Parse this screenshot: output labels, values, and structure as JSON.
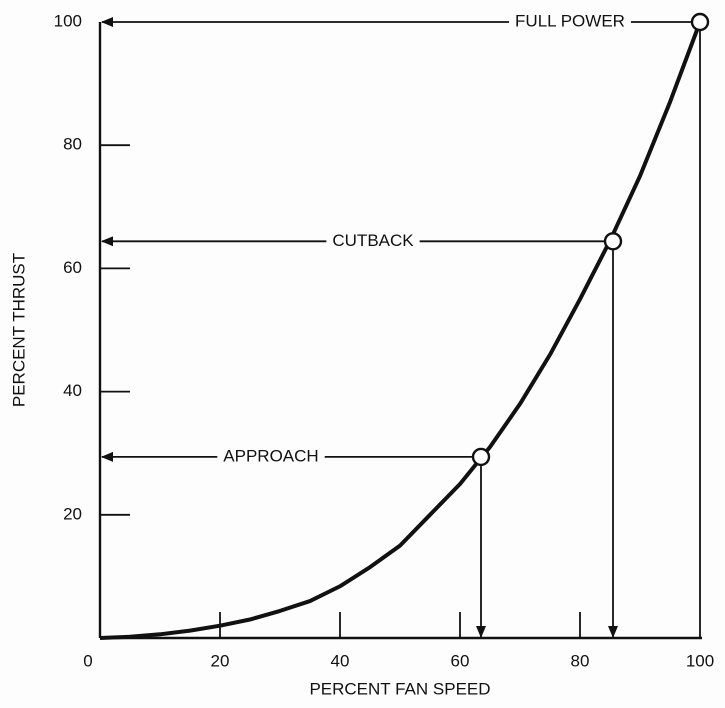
{
  "chart_data": {
    "type": "line",
    "xlabel": "PERCENT FAN SPEED",
    "ylabel": "PERCENT THRUST",
    "xlim": [
      0,
      100
    ],
    "ylim": [
      0,
      100
    ],
    "xticks": [
      0,
      20,
      40,
      60,
      80,
      100
    ],
    "yticks": [
      20,
      40,
      60,
      80,
      100
    ],
    "x": [
      0,
      5,
      10,
      15,
      20,
      25,
      30,
      35,
      40,
      45,
      50,
      55,
      60,
      65,
      70,
      75,
      80,
      85,
      90,
      95,
      100
    ],
    "series": [
      {
        "color": "#111111",
        "values": [
          0,
          0.2,
          0.6,
          1.2,
          2,
          3,
          4.4,
          6,
          8.4,
          11.5,
          15,
          20,
          25,
          31,
          38,
          46,
          55,
          64.5,
          75,
          87,
          100
        ]
      }
    ],
    "annotations": [
      {
        "text": "APPROACH",
        "x": 63.5,
        "y": 29.4
      },
      {
        "text": "CUTBACK",
        "x": 85.5,
        "y": 64.4
      },
      {
        "text": "FULL POWER",
        "x": 100,
        "y": 100
      }
    ]
  }
}
